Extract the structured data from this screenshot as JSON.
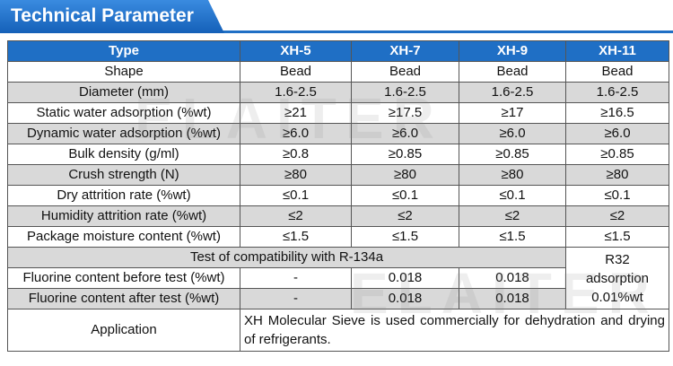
{
  "header": {
    "title": "Technical Parameter"
  },
  "watermark": "ELAITER",
  "table": {
    "columns": [
      "Type",
      "XH-5",
      "XH-7",
      "XH-9",
      "XH-11"
    ],
    "rows": [
      [
        "Shape",
        "Bead",
        "Bead",
        "Bead",
        "Bead"
      ],
      [
        "Diameter (mm)",
        "1.6-2.5",
        "1.6-2.5",
        "1.6-2.5",
        "1.6-2.5"
      ],
      [
        "Static water adsorption (%wt)",
        "≥21",
        "≥17.5",
        "≥17",
        "≥16.5"
      ],
      [
        "Dynamic water adsorption (%wt)",
        "≥6.0",
        "≥6.0",
        "≥6.0",
        "≥6.0"
      ],
      [
        "Bulk density (g/ml)",
        "≥0.8",
        "≥0.85",
        "≥0.85",
        "≥0.85"
      ],
      [
        "Crush strength (N)",
        "≥80",
        "≥80",
        "≥80",
        "≥80"
      ],
      [
        "Dry attrition rate (%wt)",
        "≤0.1",
        "≤0.1",
        "≤0.1",
        "≤0.1"
      ],
      [
        "Humidity attrition rate (%wt)",
        "≤2",
        "≤2",
        "≤2",
        "≤2"
      ],
      [
        "Package moisture content (%wt)",
        "≤1.5",
        "≤1.5",
        "≤1.5",
        "≤1.5"
      ]
    ],
    "compatibility": {
      "title": "Test of compatibility with R-134a",
      "rows": [
        [
          "Fluorine content before test (%wt)",
          "-",
          "0.018",
          "0.018"
        ],
        [
          "Fluorine content after test (%wt)",
          "-",
          "0.018",
          "0.018"
        ]
      ],
      "note": [
        "R32",
        "adsorption",
        "0.01%wt"
      ]
    },
    "application": {
      "label": "Application",
      "text": "XH Molecular Sieve is used commercially for dehydration and drying of refrigerants."
    }
  }
}
